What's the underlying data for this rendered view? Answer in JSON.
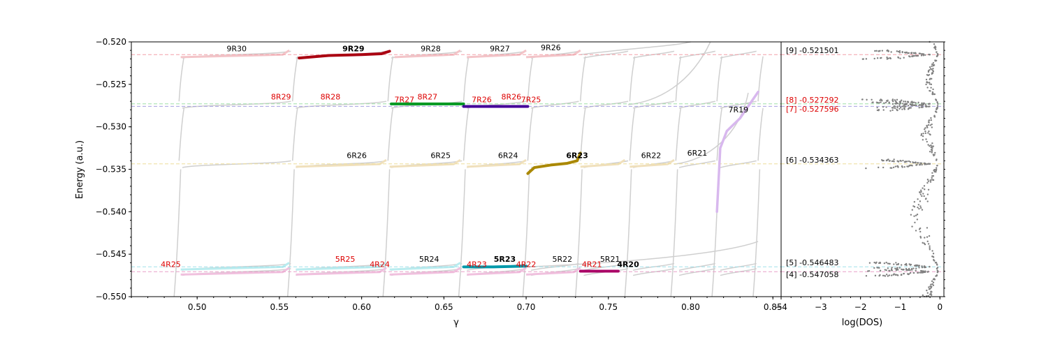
{
  "chart_data": [
    {
      "type": "line",
      "title": "",
      "xlabel": "γ",
      "ylabel": "Energy (a.u.)",
      "xlim": [
        0.46,
        0.855
      ],
      "ylim": [
        -0.55,
        -0.52
      ],
      "xticks": [
        "0.50",
        "0.55",
        "0.60",
        "0.65",
        "0.70",
        "0.75",
        "0.80",
        "0.85"
      ],
      "xtick_values": [
        0.5,
        0.55,
        0.6,
        0.65,
        0.7,
        0.75,
        0.8,
        0.85
      ],
      "yticks": [
        "−0.520",
        "−0.525",
        "−0.530",
        "−0.535",
        "−0.540",
        "−0.545",
        "−0.550"
      ],
      "ytick_values": [
        -0.52,
        -0.525,
        -0.53,
        -0.535,
        -0.54,
        -0.545,
        -0.55
      ],
      "reference_levels": [
        {
          "label": "[9]",
          "value": -0.521501,
          "color": "#f2a0a8"
        },
        {
          "label": "[8]",
          "value": -0.527292,
          "color": "#a0e0a8"
        },
        {
          "label": "[7]",
          "value": -0.527596,
          "color": "#a8a0e0"
        },
        {
          "label": "[6]",
          "value": -0.534363,
          "color": "#eedd99"
        },
        {
          "label": "[5]",
          "value": -0.546483,
          "color": "#a0e0ea"
        },
        {
          "label": "[4]",
          "value": -0.547058,
          "color": "#e8a0c8"
        }
      ],
      "series": [
        {
          "name": "9R29",
          "color": "#aa0011",
          "highlight": true,
          "x": [
            0.562,
            0.58,
            0.6,
            0.612,
            0.617
          ],
          "y": [
            -0.5219,
            -0.5216,
            -0.5215,
            -0.5214,
            -0.5211
          ]
        },
        {
          "name": "7R27",
          "color": "#009922",
          "highlight": true,
          "x": [
            0.618,
            0.64,
            0.662
          ],
          "y": [
            -0.5273,
            -0.5273,
            -0.5273
          ]
        },
        {
          "name": "7R26",
          "color": "#440099",
          "highlight": true,
          "x": [
            0.662,
            0.68,
            0.701
          ],
          "y": [
            -0.5276,
            -0.5276,
            -0.5276
          ]
        },
        {
          "name": "6R23",
          "color": "#aa8800",
          "highlight": true,
          "x": [
            0.701,
            0.705,
            0.715,
            0.725,
            0.731,
            0.733
          ],
          "y": [
            -0.5355,
            -0.5348,
            -0.5345,
            -0.5343,
            -0.534,
            -0.5331
          ]
        },
        {
          "name": "5R23",
          "color": "#0099aa",
          "highlight": true,
          "x": [
            0.662,
            0.68,
            0.7
          ],
          "y": [
            -0.5465,
            -0.5465,
            -0.5464
          ]
        },
        {
          "name": "4R20",
          "color": "#aa0066",
          "highlight": true,
          "x": [
            0.733,
            0.745,
            0.756
          ],
          "y": [
            -0.547,
            -0.547,
            -0.547
          ]
        },
        {
          "name": "7R19",
          "color": "#d8b8ee",
          "highlight": false,
          "x": [
            0.816,
            0.818,
            0.822,
            0.83,
            0.841
          ],
          "y": [
            -0.54,
            -0.5325,
            -0.5305,
            -0.529,
            -0.5259
          ]
        }
      ],
      "annotations": [
        {
          "text": "9R30",
          "x": 0.524,
          "y": -0.5211,
          "color": "#000000",
          "bold": false
        },
        {
          "text": "9R29",
          "x": 0.595,
          "y": -0.5211,
          "color": "#000000",
          "bold": true
        },
        {
          "text": "9R28",
          "x": 0.642,
          "y": -0.5211,
          "color": "#000000",
          "bold": false
        },
        {
          "text": "9R27",
          "x": 0.684,
          "y": -0.5211,
          "color": "#000000",
          "bold": false
        },
        {
          "text": "9R26",
          "x": 0.715,
          "y": -0.521,
          "color": "#000000",
          "bold": false
        },
        {
          "text": "8R29",
          "x": 0.551,
          "y": -0.5268,
          "color": "#dd0000",
          "bold": false
        },
        {
          "text": "8R28",
          "x": 0.581,
          "y": -0.5268,
          "color": "#dd0000",
          "bold": false
        },
        {
          "text": "7R27",
          "x": 0.626,
          "y": -0.5271,
          "color": "#dd0000",
          "bold": false
        },
        {
          "text": "8R27",
          "x": 0.64,
          "y": -0.5268,
          "color": "#dd0000",
          "bold": false
        },
        {
          "text": "7R26",
          "x": 0.673,
          "y": -0.5271,
          "color": "#dd0000",
          "bold": false
        },
        {
          "text": "8R26",
          "x": 0.691,
          "y": -0.5268,
          "color": "#dd0000",
          "bold": false
        },
        {
          "text": "7R25",
          "x": 0.703,
          "y": -0.5271,
          "color": "#dd0000",
          "bold": false
        },
        {
          "text": "7R19",
          "x": 0.829,
          "y": -0.5283,
          "color": "#000000",
          "bold": false
        },
        {
          "text": "6R26",
          "x": 0.597,
          "y": -0.5337,
          "color": "#000000",
          "bold": false
        },
        {
          "text": "6R25",
          "x": 0.648,
          "y": -0.5337,
          "color": "#000000",
          "bold": false
        },
        {
          "text": "6R24",
          "x": 0.689,
          "y": -0.5337,
          "color": "#000000",
          "bold": false
        },
        {
          "text": "6R23",
          "x": 0.731,
          "y": -0.5337,
          "color": "#000000",
          "bold": true
        },
        {
          "text": "6R22",
          "x": 0.776,
          "y": -0.5337,
          "color": "#000000",
          "bold": false
        },
        {
          "text": "6R21",
          "x": 0.804,
          "y": -0.5334,
          "color": "#000000",
          "bold": false
        },
        {
          "text": "5R25",
          "x": 0.59,
          "y": -0.5459,
          "color": "#dd0000",
          "bold": false
        },
        {
          "text": "5R24",
          "x": 0.641,
          "y": -0.5459,
          "color": "#000000",
          "bold": false
        },
        {
          "text": "5R23",
          "x": 0.687,
          "y": -0.5459,
          "color": "#000000",
          "bold": true
        },
        {
          "text": "5R22",
          "x": 0.722,
          "y": -0.5459,
          "color": "#000000",
          "bold": false
        },
        {
          "text": "5R21",
          "x": 0.751,
          "y": -0.5459,
          "color": "#000000",
          "bold": false
        },
        {
          "text": "4R25",
          "x": 0.484,
          "y": -0.5465,
          "color": "#dd0000",
          "bold": false
        },
        {
          "text": "4R24",
          "x": 0.611,
          "y": -0.5465,
          "color": "#dd0000",
          "bold": false
        },
        {
          "text": "4R23",
          "x": 0.67,
          "y": -0.5465,
          "color": "#dd0000",
          "bold": false
        },
        {
          "text": "4R22",
          "x": 0.7,
          "y": -0.5465,
          "color": "#dd0000",
          "bold": false
        },
        {
          "text": "4R21",
          "x": 0.74,
          "y": -0.5465,
          "color": "#dd0000",
          "bold": false
        },
        {
          "text": "4R20",
          "x": 0.762,
          "y": -0.5465,
          "color": "#000000",
          "bold": true
        }
      ]
    },
    {
      "type": "scatter",
      "title": "",
      "xlabel": "log(DOS)",
      "ylabel": "",
      "xlim": [
        -4,
        0.1
      ],
      "ylim": [
        -0.55,
        -0.52
      ],
      "xticks": [
        "−4",
        "−3",
        "−2",
        "−1",
        "0"
      ],
      "xtick_values": [
        -4,
        -3,
        -2,
        -1,
        0
      ],
      "point_color": "#808080",
      "level_labels": [
        {
          "text": "[9] -0.521501",
          "value": -0.521501,
          "color": "#000000"
        },
        {
          "text": "[8] -0.527292",
          "value": -0.527292,
          "color": "#dd0000"
        },
        {
          "text": "[7] -0.527596",
          "value": -0.527596,
          "color": "#dd0000"
        },
        {
          "text": "[6] -0.534363",
          "value": -0.534363,
          "color": "#000000"
        },
        {
          "text": "[5] -0.546483",
          "value": -0.546483,
          "color": "#000000"
        },
        {
          "text": "[4] -0.547058",
          "value": -0.547058,
          "color": "#000000"
        }
      ]
    }
  ]
}
